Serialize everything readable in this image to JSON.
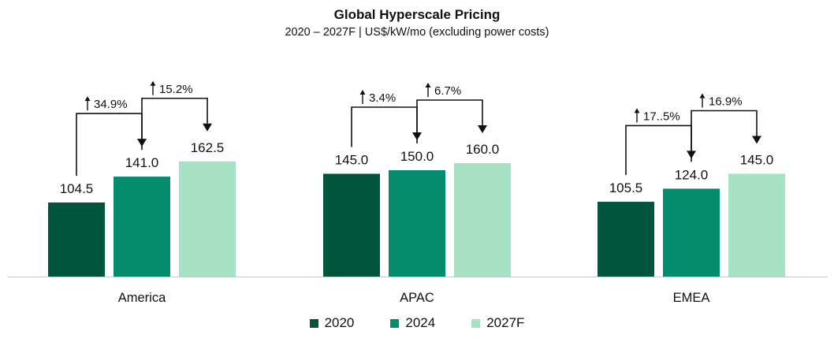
{
  "chart_data": {
    "type": "bar",
    "title": "Global Hyperscale Pricing",
    "subtitle": "2020 – 2027F | US$/kW/mo (excluding power costs)",
    "categories": [
      "America",
      "APAC",
      "EMEA"
    ],
    "series": [
      {
        "name": "2020",
        "color": "#00553c",
        "values": [
          104.5,
          145.0,
          105.5
        ]
      },
      {
        "name": "2024",
        "color": "#058c6c",
        "values": [
          141.0,
          150.0,
          124.0
        ]
      },
      {
        "name": "2027F",
        "color": "#a8e2c4",
        "values": [
          162.5,
          160.0,
          145.0
        ]
      }
    ],
    "value_labels": [
      [
        "104.5",
        "141.0",
        "162.5"
      ],
      [
        "145.0",
        "150.0",
        "160.0"
      ],
      [
        "105.5",
        "124.0",
        "145.0"
      ]
    ],
    "growth_annotations": [
      [
        {
          "label": "34.9%"
        },
        {
          "label": "15.2%"
        }
      ],
      [
        {
          "label": "3.4%"
        },
        {
          "label": "6.7%"
        }
      ],
      [
        {
          "label": "17..5%"
        },
        {
          "label": "16.9%"
        }
      ]
    ],
    "ylim": [
      0,
      245
    ],
    "grid": false,
    "legend_position": "bottom"
  },
  "colors": {
    "axis": "#c8c8c8",
    "text": "#111111",
    "arrow": "#111111"
  }
}
